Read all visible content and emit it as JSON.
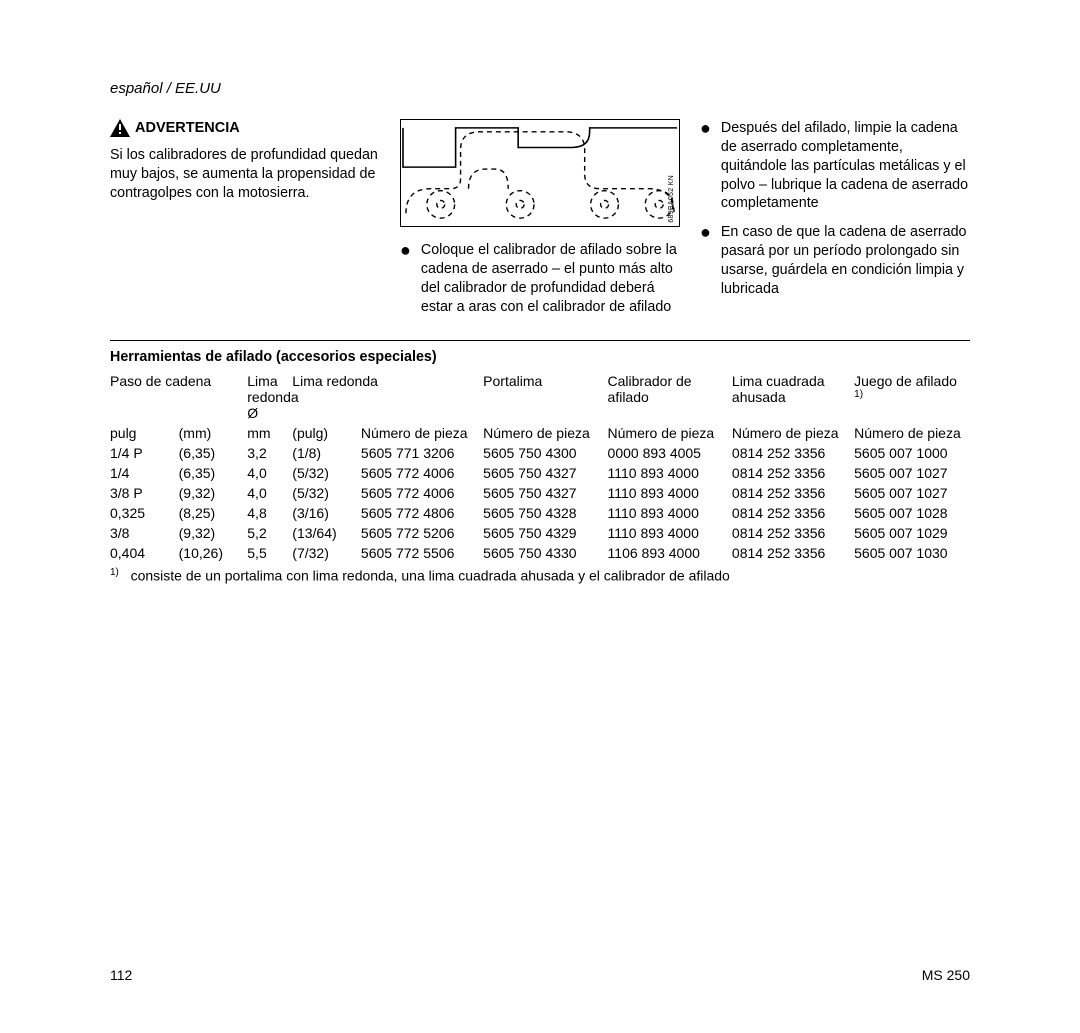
{
  "lang_header": "español / EE.UU",
  "warning": {
    "label": "ADVERTENCIA",
    "text": "Si los calibradores de profundidad quedan muy bajos, se aumenta la propensidad de contragolpes con la motosierra."
  },
  "diagram_label": "689BA052 KN",
  "col2_bullet": "Coloque el calibrador de afilado sobre la cadena de aserrado – el punto más alto del calibrador de profundidad deberá estar a aras con el calibrador de afilado",
  "col3_bullets": [
    "Después del afilado, limpie la cadena de aserrado completamente, quitándole las partículas metálicas y el polvo – lubrique la cadena de aserrado completamente",
    "En caso de que la cadena de aserrado pasará por un período prolongado sin usarse, guárdela en condición limpia y lubricada"
  ],
  "table": {
    "title": "Herramientas de afilado (accesorios especiales)",
    "colwidths": [
      "64",
      "64",
      "42",
      "64",
      "114",
      "116",
      "116",
      "114",
      "108"
    ],
    "header_row1": [
      "Paso de cadena",
      "",
      "Lima redonda Ø",
      "Lima redonda",
      "Portalima",
      "Calibrador de afilado",
      "Lima cuadrada ahusada",
      "Juego de afilado"
    ],
    "header_superscript": "1)",
    "header_row2": [
      "pulg",
      "(mm)",
      "mm",
      "(pulg)",
      "Número de pieza",
      "Número de pieza",
      "Número de pieza",
      "Número de pieza",
      "Número de pieza"
    ],
    "rows": [
      [
        "1/4 P",
        "(6,35)",
        "3,2",
        "(1/8)",
        "5605 771 3206",
        "5605 750 4300",
        "0000 893 4005",
        "0814 252 3356",
        "5605 007 1000"
      ],
      [
        "1/4",
        "(6,35)",
        "4,0",
        "(5/32)",
        "5605 772 4006",
        "5605 750 4327",
        "1110 893 4000",
        "0814 252 3356",
        "5605 007 1027"
      ],
      [
        "3/8 P",
        "(9,32)",
        "4,0",
        "(5/32)",
        "5605 772 4006",
        "5605 750 4327",
        "1110 893 4000",
        "0814 252 3356",
        "5605 007 1027"
      ],
      [
        "0,325",
        "(8,25)",
        "4,8",
        "(3/16)",
        "5605 772 4806",
        "5605 750 4328",
        "1110 893 4000",
        "0814 252 3356",
        "5605 007 1028"
      ],
      [
        "3/8",
        "(9,32)",
        "5,2",
        "(13/64)",
        "5605 772 5206",
        "5605 750 4329",
        "1110 893 4000",
        "0814 252 3356",
        "5605 007 1029"
      ],
      [
        "0,404",
        "(10,26)",
        "5,5",
        "(7/32)",
        "5605 772 5506",
        "5605 750 4330",
        "1106 893 4000",
        "0814 252 3356",
        "5605 007 1030"
      ]
    ],
    "footnote_marker": "1)",
    "footnote": "consiste de un portalima con lima redonda, una lima cuadrada ahusada y el calibrador de afilado"
  },
  "footer": {
    "page": "112",
    "model": "MS 250"
  },
  "colors": {
    "text": "#000000",
    "background": "#ffffff",
    "border": "#000000"
  }
}
